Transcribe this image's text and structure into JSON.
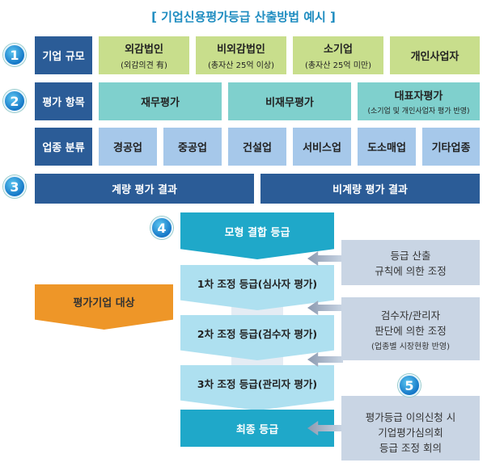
{
  "title": "[ 기업신용평가등급 산출방법 예시 ]",
  "steps": [
    "1",
    "2",
    "3",
    "4",
    "5"
  ],
  "row1": {
    "label": "기업 규모",
    "items": [
      {
        "main": "외감법인",
        "sub": "(외감의견 有)"
      },
      {
        "main": "비외감법인",
        "sub": "(총자산 25억 이상)"
      },
      {
        "main": "소기업",
        "sub": "(총자산 25억 미만)"
      },
      {
        "main": "개인사업자",
        "sub": ""
      }
    ]
  },
  "row2": {
    "label": "평가 항목",
    "items": [
      {
        "main": "재무평가",
        "sub": ""
      },
      {
        "main": "비재무평가",
        "sub": ""
      },
      {
        "main": "대표자평가",
        "sub": "(소기업 및 개인사업자 평가 반영)"
      }
    ]
  },
  "row3": {
    "label": "업종 분류",
    "items": [
      "경공업",
      "중공업",
      "건설업",
      "서비스업",
      "도소매업",
      "기타업종"
    ]
  },
  "row4": {
    "items": [
      "계량 평가 결과",
      "비계량 평가 결과"
    ]
  },
  "flow": {
    "model": "모형 결합 등급",
    "adj1": "1차 조정 등급(심사자 평가)",
    "adj2": "2차 조정 등급(검수자 평가)",
    "adj3": "3차 조정 등급(관리자 평가)",
    "final": "최종 등급"
  },
  "target": "평가기업 대상",
  "notes": [
    {
      "lines": [
        "등급 산출",
        "규칙에 의한 조정"
      ]
    },
    {
      "lines": [
        "검수자/관리자",
        "판단에 의한 조정"
      ],
      "sub": "(업종별 시장현황 반영)"
    },
    {
      "lines": [
        "평가등급 이의신청 시",
        "기업평가심의회",
        "등급 조정 회의"
      ]
    }
  ],
  "colors": {
    "dark_blue": "#2b5c97",
    "green": "#c8de8c",
    "teal": "#7fd0cd",
    "light_blue": "#a6c8ea",
    "cyan": "#1fa8c9",
    "orange": "#ee9628",
    "gray": "#c9d5e4"
  }
}
